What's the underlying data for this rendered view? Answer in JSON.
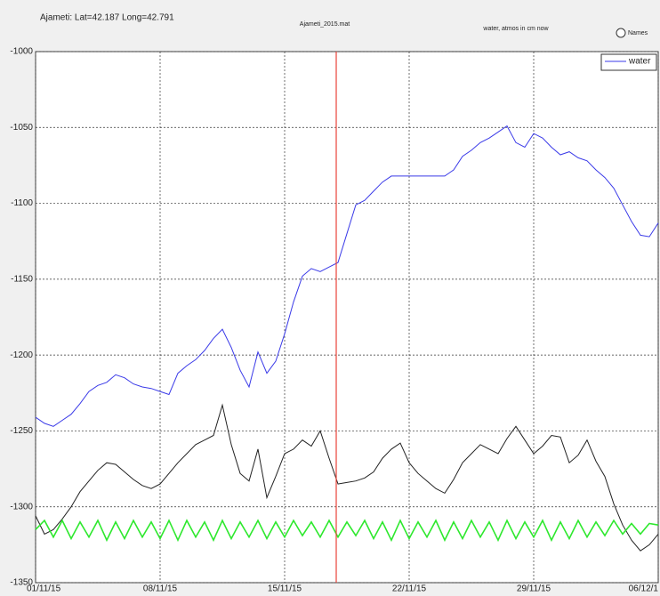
{
  "chart_data": {
    "type": "line",
    "info": "Ajameti: Lat=42.187 Long=42.791",
    "title": "Ajameti_2015.mat",
    "subtitle": "water, atmos in cm now",
    "radio_label": "Names",
    "x": [
      0,
      0.5,
      1,
      1.5,
      2,
      2.5,
      3,
      3.5,
      4,
      4.5,
      5,
      5.5,
      6,
      6.5,
      7,
      7.5,
      8,
      8.5,
      9,
      9.5,
      10,
      10.5,
      11,
      11.5,
      12,
      12.5,
      13,
      13.5,
      14,
      14.5,
      15,
      15.5,
      16,
      16.5,
      17,
      17.5,
      18,
      18.5,
      19,
      19.5,
      20,
      20.5,
      21,
      21.5,
      22,
      22.5,
      23,
      23.5,
      24,
      24.5,
      25,
      25.5,
      26,
      26.5,
      27,
      27.5,
      28,
      28.5,
      29,
      29.5,
      30,
      30.5,
      31,
      31.5,
      32,
      32.5,
      33,
      33.5,
      34,
      34.5,
      35
    ],
    "xlim": [
      0,
      35
    ],
    "xticks": [
      {
        "value": 0,
        "label": "01/11/15"
      },
      {
        "value": 7,
        "label": "08/11/15"
      },
      {
        "value": 14,
        "label": "15/11/15"
      },
      {
        "value": 21,
        "label": "22/11/15"
      },
      {
        "value": 28,
        "label": "29/11/15"
      },
      {
        "value": 35,
        "label": "06/12/1"
      }
    ],
    "ylim": [
      -1350,
      -1000
    ],
    "yticks": [
      -1350,
      -1300,
      -1250,
      -1200,
      -1150,
      -1100,
      -1050,
      -1000
    ],
    "grid": true,
    "legend": "top-right",
    "cursor_x": 16.9,
    "cursor_color": "#e8443a",
    "series": [
      {
        "name": "water",
        "color": "#3a3ae8",
        "values": [
          -1241,
          -1245,
          -1247,
          -1243,
          -1239,
          -1232,
          -1224,
          -1220,
          -1218,
          -1213,
          -1215,
          -1219,
          -1221,
          -1222,
          -1224,
          -1226,
          -1212,
          -1207,
          -1203,
          -1197,
          -1189,
          -1183,
          -1195,
          -1210,
          -1221,
          -1198,
          -1212,
          -1204,
          -1186,
          -1165,
          -1148,
          -1143,
          -1145,
          -1142,
          -1139,
          -1120,
          -1101,
          -1098,
          -1092,
          -1086,
          -1082,
          -1082,
          -1082,
          -1082,
          -1082,
          -1082,
          -1082,
          -1078,
          -1069,
          -1065,
          -1060,
          -1057,
          -1053,
          -1049,
          -1060,
          -1063,
          -1054,
          -1057,
          -1063,
          -1068,
          -1066,
          -1070,
          -1072,
          -1078,
          -1083,
          -1090,
          -1101,
          -1112,
          -1121,
          -1122,
          -1113
        ]
      },
      {
        "color": "#222222",
        "values": [
          -1306,
          -1318,
          -1315,
          -1308,
          -1300,
          -1290,
          -1283,
          -1276,
          -1271,
          -1272,
          -1277,
          -1282,
          -1286,
          -1288,
          -1285,
          -1278,
          -1271,
          -1265,
          -1259,
          -1256,
          -1253,
          -1233,
          -1259,
          -1278,
          -1283,
          -1262,
          -1294,
          -1280,
          -1265,
          -1262,
          -1256,
          -1260,
          -1250,
          -1268,
          -1285,
          -1284,
          -1283,
          -1281,
          -1277,
          -1268,
          -1262,
          -1258,
          -1271,
          -1278,
          -1283,
          -1288,
          -1291,
          -1282,
          -1271,
          -1265,
          -1259,
          -1262,
          -1265,
          -1255,
          -1247,
          -1256,
          -1265,
          -1260,
          -1253,
          -1254,
          -1271,
          -1266,
          -1256,
          -1270,
          -1280,
          -1298,
          -1312,
          -1322,
          -1329,
          -1325,
          -1318
        ]
      },
      {
        "color": "#2ee82e",
        "values": [
          -1315,
          -1309,
          -1320,
          -1309,
          -1321,
          -1310,
          -1320,
          -1309,
          -1322,
          -1310,
          -1321,
          -1309,
          -1320,
          -1310,
          -1321,
          -1309,
          -1322,
          -1309,
          -1320,
          -1310,
          -1322,
          -1309,
          -1321,
          -1310,
          -1320,
          -1309,
          -1321,
          -1310,
          -1320,
          -1309,
          -1319,
          -1310,
          -1320,
          -1309,
          -1320,
          -1310,
          -1319,
          -1309,
          -1321,
          -1310,
          -1322,
          -1309,
          -1321,
          -1310,
          -1320,
          -1309,
          -1322,
          -1310,
          -1321,
          -1309,
          -1320,
          -1310,
          -1322,
          -1309,
          -1321,
          -1310,
          -1320,
          -1309,
          -1322,
          -1310,
          -1321,
          -1309,
          -1320,
          -1310,
          -1319,
          -1309,
          -1318,
          -1311,
          -1318,
          -1311,
          -1312
        ]
      }
    ]
  }
}
